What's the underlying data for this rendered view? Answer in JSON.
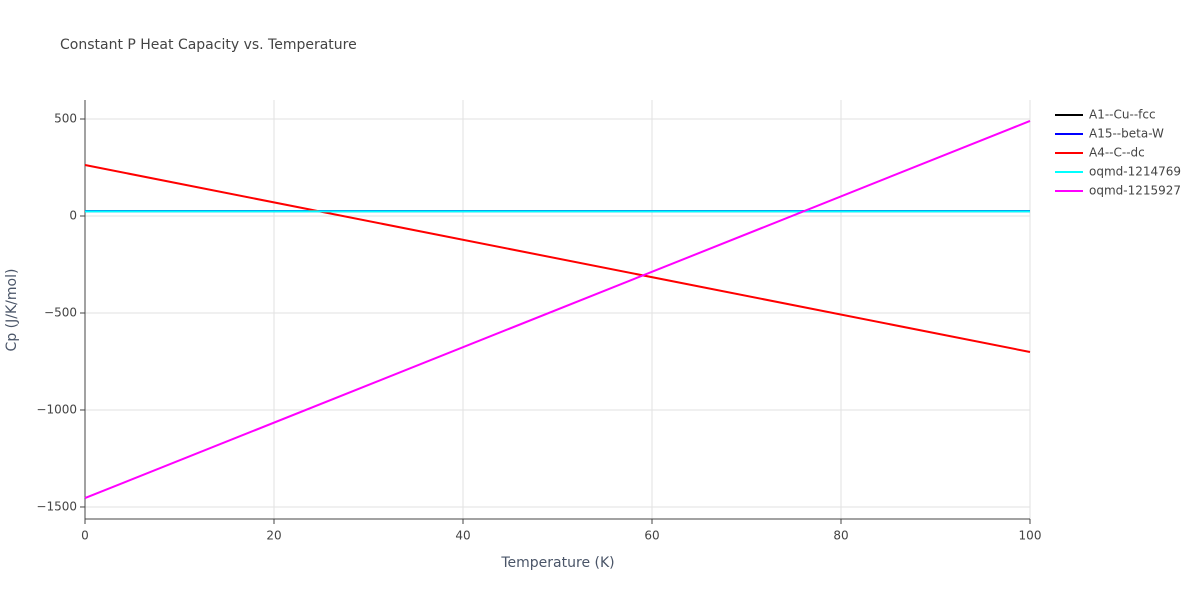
{
  "chart_data": {
    "type": "line",
    "title": "Constant P Heat Capacity vs. Temperature",
    "x_label": "Temperature (K)",
    "y_label": "Cp (J/K/mol)",
    "x": [
      0,
      100
    ],
    "series": [
      {
        "name": "A1--Cu--fcc",
        "color": "#000000",
        "values": [
          25,
          25
        ]
      },
      {
        "name": "A15--beta-W",
        "color": "#0000ff",
        "values": [
          25,
          25
        ]
      },
      {
        "name": "A4--C--dc",
        "color": "#ff0000",
        "values": [
          263,
          -701
        ]
      },
      {
        "name": "oqmd-1214769",
        "color": "#00ffff",
        "values": [
          24,
          24
        ]
      },
      {
        "name": "oqmd-1215927",
        "color": "#ff00ff",
        "values": [
          -1454,
          490
        ]
      }
    ],
    "xlim": [
      0,
      100
    ],
    "xticks": [
      0,
      20,
      40,
      60,
      80,
      100
    ],
    "ylim": [
      -1562,
      598
    ],
    "yticks": [
      {
        "value": -1500,
        "label": "−1500"
      },
      {
        "value": -1000,
        "label": "−1000"
      },
      {
        "value": -500,
        "label": "−500"
      },
      0,
      500
    ],
    "grid": true
  }
}
